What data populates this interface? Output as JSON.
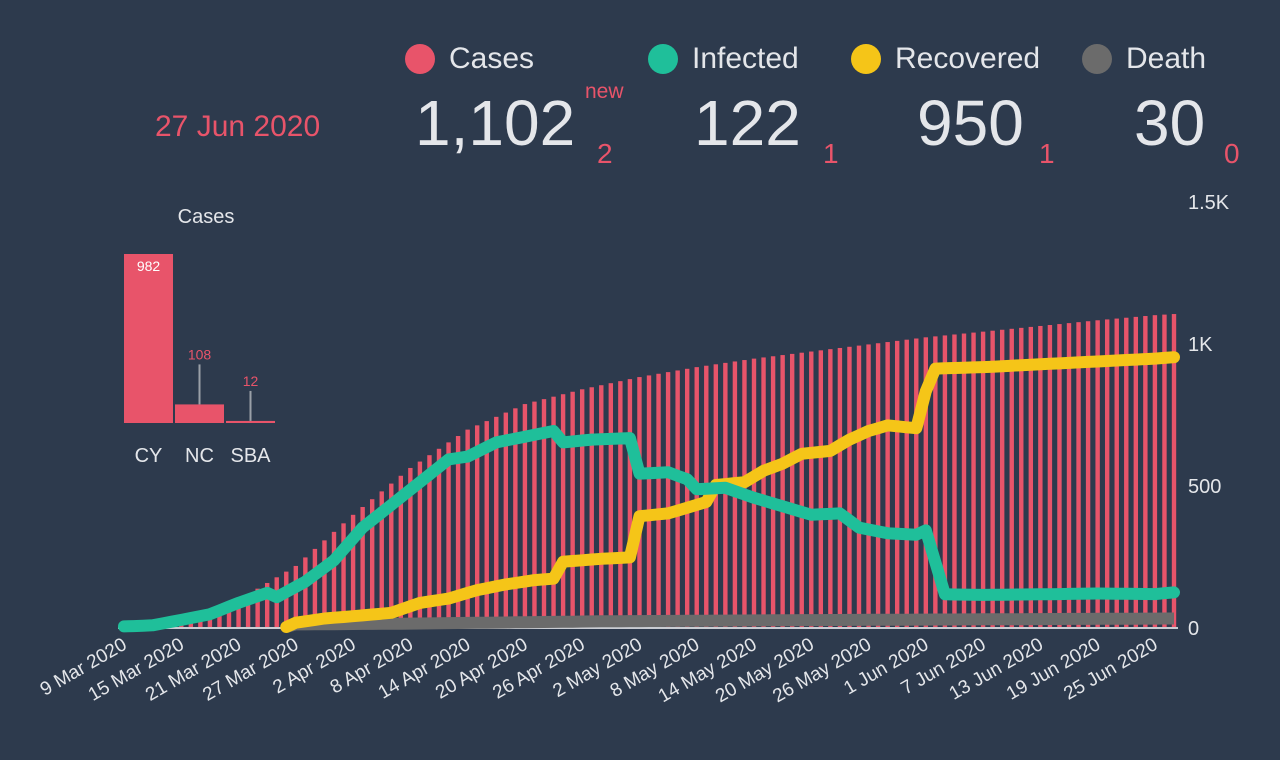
{
  "header": {
    "date": "27 Jun 2020",
    "stats": [
      {
        "key": "cases",
        "label": "Cases",
        "value": "1,102",
        "delta": "2",
        "delta_label": "new",
        "color": "#e8546a"
      },
      {
        "key": "infected",
        "label": "Infected",
        "value": "122",
        "delta": "1",
        "color": "#1fbf9a"
      },
      {
        "key": "recovered",
        "label": "Recovered",
        "value": "950",
        "delta": "1",
        "color": "#f5c518"
      },
      {
        "key": "death",
        "label": "Death",
        "value": "30",
        "delta": "0",
        "color": "#6b6b6b"
      }
    ]
  },
  "chart_data": [
    {
      "type": "bar",
      "title": "Cases",
      "categories": [
        "CY",
        "NC",
        "SBA"
      ],
      "values": [
        982,
        108,
        12
      ],
      "color": "#e8546a"
    },
    {
      "type": "bar+line",
      "title": "",
      "x_start": "2020-03-09",
      "x_end": "2020-06-27",
      "xtick_labels": [
        "9 Mar 2020",
        "15 Mar 2020",
        "21 Mar 2020",
        "27 Mar 2020",
        "2 Apr 2020",
        "8 Apr 2020",
        "14 Apr 2020",
        "20 Apr 2020",
        "26 Apr 2020",
        "2 May 2020",
        "8 May 2020",
        "14 May 2020",
        "20 May 2020",
        "26 May 2020",
        "1 Jun 2020",
        "7 Jun 2020",
        "13 Jun 2020",
        "19 Jun 2020",
        "25 Jun 2020"
      ],
      "ytick_labels": [
        "0",
        "500",
        "1K",
        "1.5K"
      ],
      "ylim": [
        0,
        1500
      ],
      "yticks": [
        0,
        500,
        1000,
        1500
      ],
      "series": [
        {
          "name": "Cases",
          "kind": "bar",
          "color": "#e8546a",
          "anchors": [
            [
              0,
              2
            ],
            [
              6,
              27
            ],
            [
              12,
              95
            ],
            [
              18,
              215
            ],
            [
              24,
              395
            ],
            [
              30,
              560
            ],
            [
              36,
              695
            ],
            [
              42,
              785
            ],
            [
              48,
              837
            ],
            [
              54,
              880
            ],
            [
              60,
              915
            ],
            [
              66,
              945
            ],
            [
              72,
              970
            ],
            [
              78,
              995
            ],
            [
              84,
              1020
            ],
            [
              90,
              1040
            ],
            [
              96,
              1060
            ],
            [
              102,
              1080
            ],
            [
              108,
              1098
            ],
            [
              110,
              1102
            ]
          ]
        },
        {
          "name": "Infected",
          "kind": "line",
          "color": "#1fbf9a",
          "anchors": [
            [
              0,
              2
            ],
            [
              3,
              6
            ],
            [
              6,
              25
            ],
            [
              9,
              45
            ],
            [
              12,
              85
            ],
            [
              15,
              120
            ],
            [
              16,
              105
            ],
            [
              19,
              160
            ],
            [
              22,
              235
            ],
            [
              25,
              350
            ],
            [
              28,
              430
            ],
            [
              31,
              510
            ],
            [
              34,
              590
            ],
            [
              36,
              600
            ],
            [
              39,
              650
            ],
            [
              42,
              670
            ],
            [
              45,
              690
            ],
            [
              46,
              650
            ],
            [
              49,
              660
            ],
            [
              53,
              665
            ],
            [
              54,
              540
            ],
            [
              57,
              545
            ],
            [
              59,
              520
            ],
            [
              60,
              485
            ],
            [
              63,
              490
            ],
            [
              66,
              455
            ],
            [
              69,
              425
            ],
            [
              72,
              395
            ],
            [
              75,
              400
            ],
            [
              77,
              350
            ],
            [
              80,
              330
            ],
            [
              83,
              325
            ],
            [
              84,
              340
            ],
            [
              86,
              115
            ],
            [
              90,
              113
            ],
            [
              96,
              115
            ],
            [
              102,
              118
            ],
            [
              108,
              116
            ],
            [
              110,
              122
            ]
          ]
        },
        {
          "name": "Recovered",
          "kind": "line",
          "color": "#f5c518",
          "anchors": [
            [
              17,
              0
            ],
            [
              18,
              15
            ],
            [
              21,
              30
            ],
            [
              24,
              38
            ],
            [
              28,
              50
            ],
            [
              31,
              85
            ],
            [
              34,
              100
            ],
            [
              37,
              130
            ],
            [
              40,
              150
            ],
            [
              43,
              165
            ],
            [
              45,
              170
            ],
            [
              46,
              230
            ],
            [
              50,
              240
            ],
            [
              53,
              245
            ],
            [
              54,
              390
            ],
            [
              57,
              400
            ],
            [
              59,
              420
            ],
            [
              61,
              440
            ],
            [
              62,
              500
            ],
            [
              65,
              510
            ],
            [
              67,
              550
            ],
            [
              69,
              575
            ],
            [
              71,
              610
            ],
            [
              74,
              620
            ],
            [
              76,
              660
            ],
            [
              78,
              690
            ],
            [
              80,
              710
            ],
            [
              83,
              700
            ],
            [
              84,
              830
            ],
            [
              85,
              910
            ],
            [
              90,
              915
            ],
            [
              96,
              925
            ],
            [
              102,
              935
            ],
            [
              108,
              945
            ],
            [
              110,
              950
            ]
          ]
        },
        {
          "name": "Death",
          "kind": "line",
          "color": "#6b6b6b",
          "anchors": [
            [
              17,
              0
            ],
            [
              18,
              9
            ],
            [
              30,
              12
            ],
            [
              50,
              20
            ],
            [
              70,
              24
            ],
            [
              90,
              27
            ],
            [
              110,
              30
            ]
          ]
        }
      ]
    }
  ]
}
